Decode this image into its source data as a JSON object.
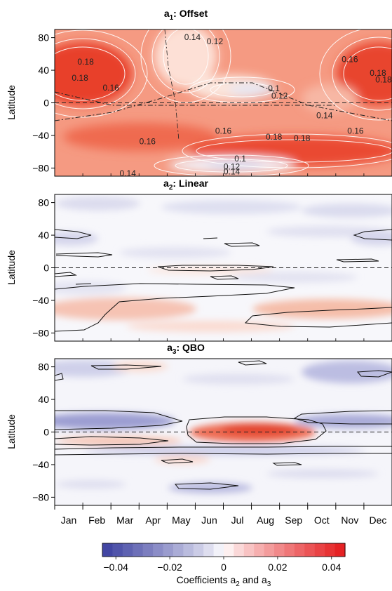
{
  "chart_data": [
    {
      "type": "heatmap",
      "title_base": "a",
      "title_sub": "1",
      "title_rest": ": Offset",
      "ylabel": "Latitude",
      "yticks": [
        80,
        40,
        0,
        -40,
        -80
      ],
      "ylim": [
        -90,
        90
      ],
      "xlim": [
        0.5,
        12.5
      ],
      "zero_line": "dashed",
      "contour_labels": [
        {
          "text": "0.18",
          "month": 1.6,
          "lat": 47
        },
        {
          "text": "0.18",
          "month": 1.4,
          "lat": 27
        },
        {
          "text": "0.16",
          "month": 2.5,
          "lat": 15
        },
        {
          "text": "0.14",
          "month": 5.4,
          "lat": 77
        },
        {
          "text": "0.12",
          "month": 6.2,
          "lat": 72
        },
        {
          "text": "0.16",
          "month": 11.0,
          "lat": 50
        },
        {
          "text": "0.18",
          "month": 12.0,
          "lat": 33
        },
        {
          "text": "0.18",
          "month": 12.2,
          "lat": 25
        },
        {
          "text": "0.1",
          "month": 8.3,
          "lat": 14
        },
        {
          "text": "0.12",
          "month": 8.5,
          "lat": 5
        },
        {
          "text": "0.14",
          "month": 10.1,
          "lat": -19
        },
        {
          "text": "0.16",
          "month": 11.2,
          "lat": -38
        },
        {
          "text": "0.16",
          "month": 3.8,
          "lat": -51
        },
        {
          "text": "0.16",
          "month": 6.5,
          "lat": -38
        },
        {
          "text": "0.18",
          "month": 8.3,
          "lat": -45
        },
        {
          "text": "0.18",
          "month": 9.3,
          "lat": -47
        },
        {
          "text": "0.1",
          "month": 7.1,
          "lat": -72
        },
        {
          "text": "0.12",
          "month": 6.8,
          "lat": -82
        },
        {
          "text": "0.14",
          "month": 6.8,
          "lat": -88
        },
        {
          "text": "0.14",
          "month": 3.1,
          "lat": -90
        }
      ]
    },
    {
      "type": "heatmap",
      "title_base": "a",
      "title_sub": "2",
      "title_rest": ": Linear",
      "ylabel": "Latitude",
      "yticks": [
        80,
        40,
        0,
        -40,
        -80
      ],
      "ylim": [
        -90,
        90
      ],
      "xlim": [
        0.5,
        12.5
      ],
      "zero_line": "dashed"
    },
    {
      "type": "heatmap",
      "title_base": "a",
      "title_sub": "3",
      "title_rest": ": QBO",
      "ylabel": "Latitude",
      "yticks": [
        80,
        40,
        0,
        -40,
        -80
      ],
      "ylim": [
        -90,
        90
      ],
      "xlim": [
        0.5,
        12.5
      ],
      "zero_line": "dashed",
      "xticks": [
        "Jan",
        "Feb",
        "Mar",
        "Apr",
        "May",
        "Jun",
        "Jul",
        "Aug",
        "Sep",
        "Oct",
        "Nov",
        "Dec"
      ]
    }
  ],
  "colorbar": {
    "range": [
      -0.045,
      0.045
    ],
    "ticks": [
      "−0.04",
      "−0.02",
      "0",
      "0.02",
      "0.04"
    ],
    "tick_values": [
      -0.04,
      -0.02,
      0,
      0.02,
      0.04
    ],
    "label_base": "Coefficients a",
    "label_sub1": "2",
    "label_mid": " and a",
    "label_sub2": "3"
  },
  "colors": {
    "neg_max": "#3b3fa0",
    "neg_mid": "#9fa0d4",
    "zero": "#ffffff",
    "pos_mid": "#f4a58f",
    "pos_max": "#e41a1c"
  }
}
